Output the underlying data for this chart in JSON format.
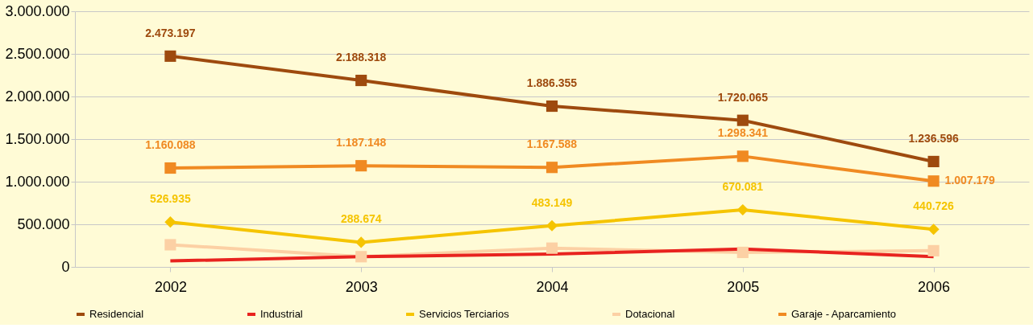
{
  "chart_data": {
    "type": "line",
    "categories": [
      "2002",
      "2003",
      "2004",
      "2005",
      "2006"
    ],
    "ylim": [
      0,
      3000000
    ],
    "yticks": [
      {
        "value": 0,
        "label": "0"
      },
      {
        "value": 500000,
        "label": "500.000"
      },
      {
        "value": 1000000,
        "label": "1.000.000"
      },
      {
        "value": 1500000,
        "label": "1.500.000"
      },
      {
        "value": 2000000,
        "label": "2.000.000"
      },
      {
        "value": 2500000,
        "label": "2.500.000"
      },
      {
        "value": 3000000,
        "label": "3.000.000"
      }
    ],
    "grid": "y",
    "legend": "bottom",
    "series": [
      {
        "name": "Residencial",
        "color": "#9e4a0e",
        "marker": "square",
        "values": [
          2473197,
          2188318,
          1886355,
          1720065,
          1236596
        ],
        "value_labels": [
          "2.473.197",
          "2.188.318",
          "1.886.355",
          "1.720.065",
          "1.236.596"
        ]
      },
      {
        "name": "Industrial",
        "color": "#e8231f",
        "marker": "none",
        "values": [
          70000,
          120000,
          150000,
          210000,
          120000
        ]
      },
      {
        "name": "Servicios Terciarios",
        "color": "#f5c400",
        "marker": "diamond",
        "values": [
          526935,
          288674,
          483149,
          670081,
          440726
        ],
        "value_labels": [
          "526.935",
          "288.674",
          "483.149",
          "670.081",
          "440.726"
        ]
      },
      {
        "name": "Dotacional",
        "color": "#fcd0a4",
        "marker": "square",
        "values": [
          260000,
          120000,
          220000,
          170000,
          190000
        ]
      },
      {
        "name": "Garaje - Aparcamiento",
        "color": "#f08a22",
        "marker": "square",
        "values": [
          1160088,
          1187148,
          1167588,
          1298341,
          1007179
        ],
        "value_labels": [
          "1.160.088",
          "1.187.148",
          "1.167.588",
          "1.298.341",
          "1.007.179"
        ]
      }
    ]
  }
}
